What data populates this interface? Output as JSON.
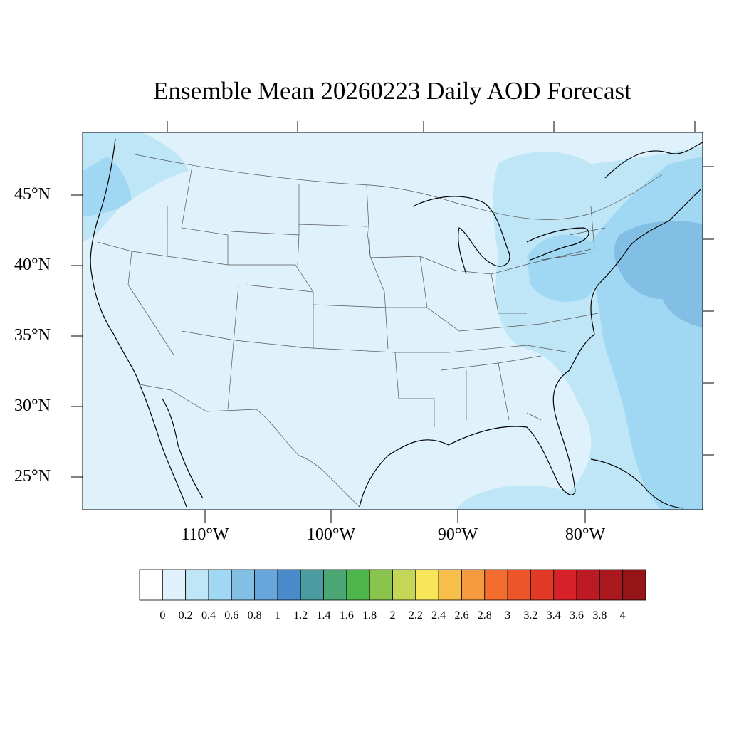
{
  "title": "Ensemble Mean 20260223 Daily AOD Forecast",
  "lat_labels": [
    "45°N",
    "40°N",
    "35°N",
    "30°N",
    "25°N"
  ],
  "lon_labels": [
    "110°W",
    "100°W",
    "90°W",
    "80°W"
  ],
  "colorbar": {
    "labels": [
      "0",
      "0.2",
      "0.4",
      "0.6",
      "0.8",
      "1",
      "1.2",
      "1.4",
      "1.6",
      "1.8",
      "2",
      "2.2",
      "2.4",
      "2.6",
      "2.8",
      "3",
      "3.2",
      "3.4",
      "3.6",
      "3.8",
      "4"
    ],
    "colors": [
      "#ffffff",
      "#dff2fb",
      "#bfe6f7",
      "#a0d8f3",
      "#83bfe5",
      "#67a6da",
      "#4a8ccb",
      "#4a9ca0",
      "#4aa673",
      "#4db64a",
      "#8ac34d",
      "#c4d655",
      "#f7e55a",
      "#f7bf4a",
      "#f59a3e",
      "#f36d2f",
      "#ec5429",
      "#e33a25",
      "#d62128",
      "#bb1a23",
      "#a8181e",
      "#941417"
    ]
  },
  "map_colors": {
    "background": "#dff2fb",
    "level_2": "#bfe6f7",
    "level_3": "#a0d8f3",
    "level_4": "#83bfe5"
  }
}
